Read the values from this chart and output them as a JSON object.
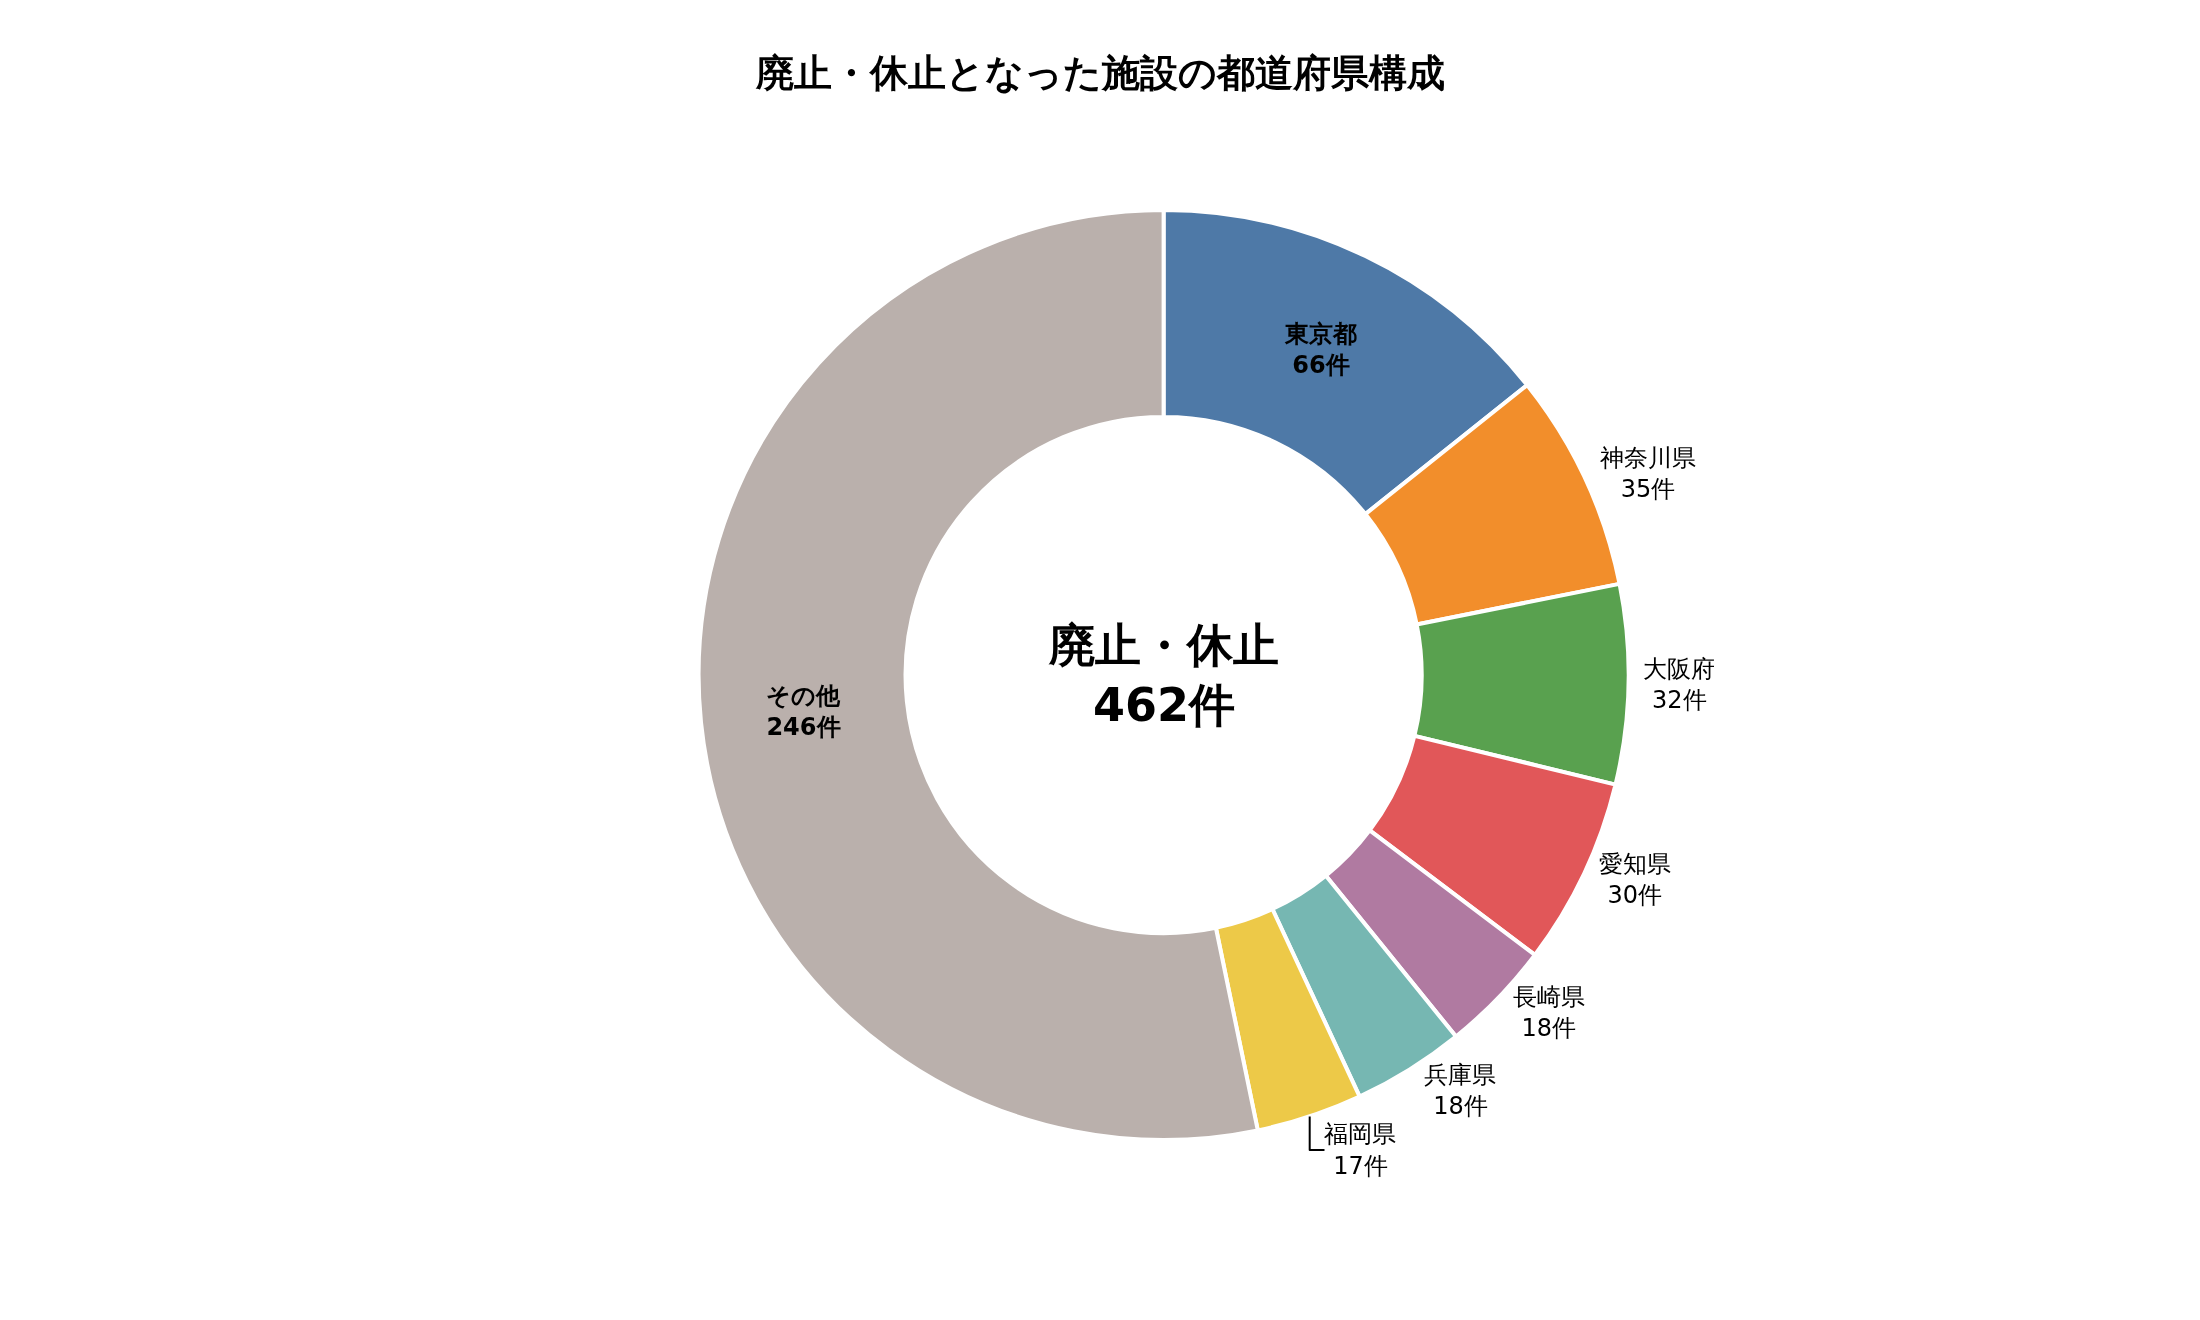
{
  "chart_data": {
    "type": "donut",
    "title": "廃止・休止となった施設の都道府県構成",
    "categories": [
      "東京都",
      "神奈川県",
      "大阪府",
      "愛知県",
      "長崎県",
      "兵庫県",
      "福岡県",
      "その他"
    ],
    "values": [
      66,
      35,
      32,
      30,
      18,
      18,
      17,
      246
    ],
    "value_labels": [
      "66件",
      "35件",
      "32件",
      "30件",
      "18件",
      "18件",
      "17件",
      "246件"
    ],
    "colors": [
      "#4e79a7",
      "#f28e2b",
      "#59a14f",
      "#e15759",
      "#b07aa1",
      "#76b7b2",
      "#edc948",
      "#bab0ac"
    ],
    "annotations": [
      "廃止・休止\n462件"
    ],
    "legend": false
  }
}
